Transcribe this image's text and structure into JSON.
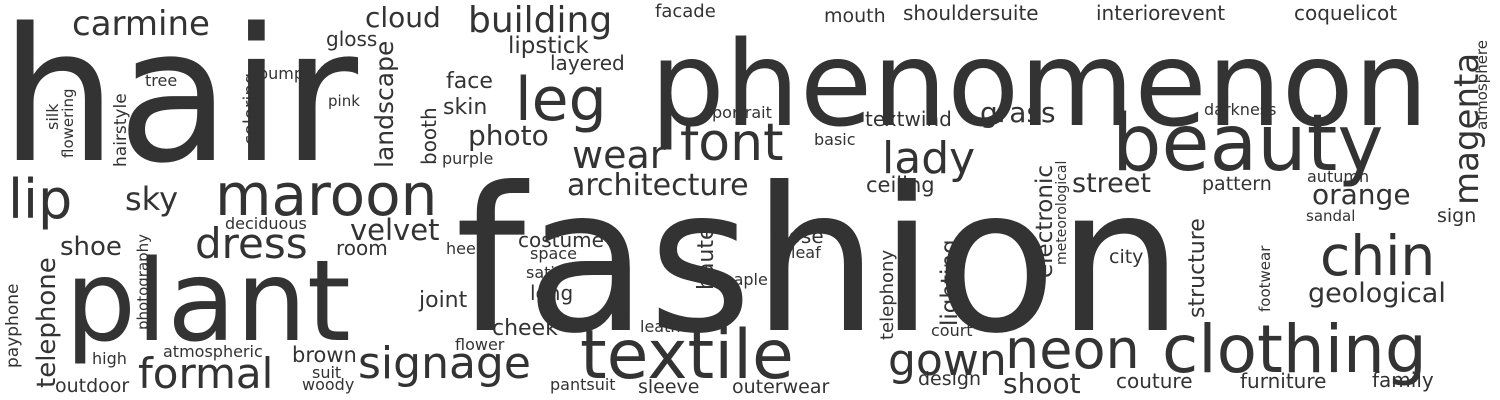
{
  "color": "#333333",
  "words": [
    {
      "text": "fashion",
      "weight": 100
    },
    {
      "text": "hair",
      "weight": 92
    },
    {
      "text": "phenomenon",
      "weight": 80
    },
    {
      "text": "plant",
      "weight": 70
    },
    {
      "text": "textile",
      "weight": 55
    },
    {
      "text": "clothing",
      "weight": 54
    },
    {
      "text": "beauty",
      "weight": 53
    },
    {
      "text": "maroon",
      "weight": 44
    },
    {
      "text": "leg",
      "weight": 44
    },
    {
      "text": "neon",
      "weight": 42
    },
    {
      "text": "chin",
      "weight": 38
    },
    {
      "text": "font",
      "weight": 37
    },
    {
      "text": "lip",
      "weight": 37
    },
    {
      "text": "lady",
      "weight": 34
    },
    {
      "text": "signage",
      "weight": 34
    },
    {
      "text": "formal",
      "weight": 34
    },
    {
      "text": "dress",
      "weight": 33
    },
    {
      "text": "gown",
      "weight": 33
    },
    {
      "text": "magenta",
      "weight": 31
    },
    {
      "text": "wear",
      "weight": 30
    },
    {
      "text": "carmine",
      "weight": 30
    },
    {
      "text": "building",
      "weight": 30
    },
    {
      "text": "architecture",
      "weight": 27
    },
    {
      "text": "telephone",
      "weight": 26
    },
    {
      "text": "geological",
      "weight": 25
    },
    {
      "text": "sky",
      "weight": 25
    },
    {
      "text": "photo",
      "weight": 25
    },
    {
      "text": "shoot",
      "weight": 25
    },
    {
      "text": "street",
      "weight": 24
    },
    {
      "text": "velvet",
      "weight": 24
    },
    {
      "text": "orange",
      "weight": 24
    },
    {
      "text": "grass",
      "weight": 24
    },
    {
      "text": "cloud",
      "weight": 24
    },
    {
      "text": "shoe",
      "weight": 23
    },
    {
      "text": "landscape",
      "weight": 22
    },
    {
      "text": "lipstick",
      "weight": 22
    },
    {
      "text": "lighting",
      "weight": 21
    },
    {
      "text": "electronic",
      "weight": 21
    },
    {
      "text": "structure",
      "weight": 21
    },
    {
      "text": "haute",
      "weight": 21
    },
    {
      "text": "brown",
      "weight": 21
    },
    {
      "text": "cheek",
      "weight": 21
    },
    {
      "text": "joint",
      "weight": 21
    },
    {
      "text": "skin",
      "weight": 21
    },
    {
      "text": "face",
      "weight": 21
    },
    {
      "text": "ceiling",
      "weight": 20
    },
    {
      "text": "textwind",
      "weight": 20
    },
    {
      "text": "costume",
      "weight": 20
    },
    {
      "text": "layered",
      "weight": 20
    },
    {
      "text": "long",
      "weight": 20
    },
    {
      "text": "booth",
      "weight": 20
    },
    {
      "text": "gloss",
      "weight": 20
    },
    {
      "text": "shouldersuite",
      "weight": 20
    },
    {
      "text": "interiorevent",
      "weight": 20
    },
    {
      "text": "coquelicot",
      "weight": 20
    },
    {
      "text": "room",
      "weight": 20
    },
    {
      "text": "nose",
      "weight": 20
    },
    {
      "text": "couture",
      "weight": 20
    },
    {
      "text": "furniture",
      "weight": 20
    },
    {
      "text": "family",
      "weight": 20
    },
    {
      "text": "design",
      "weight": 20
    },
    {
      "text": "outerwear",
      "weight": 20
    },
    {
      "text": "sleeve",
      "weight": 20
    },
    {
      "text": "outdoor",
      "weight": 20
    },
    {
      "text": "mouth",
      "weight": 19
    },
    {
      "text": "pattern",
      "weight": 19
    },
    {
      "text": "sign",
      "weight": 19
    },
    {
      "text": "city",
      "weight": 19
    },
    {
      "text": "telephony",
      "weight": 19
    },
    {
      "text": "facade",
      "weight": 18
    },
    {
      "text": "coloring",
      "weight": 18
    },
    {
      "text": "hairstyle",
      "weight": 18
    },
    {
      "text": "payphone",
      "weight": 18
    },
    {
      "text": "atmosphere",
      "weight": 17
    },
    {
      "text": "autumn",
      "weight": 16
    },
    {
      "text": "pump",
      "weight": 16
    },
    {
      "text": "deciduous",
      "weight": 16
    },
    {
      "text": "purple",
      "weight": 16
    },
    {
      "text": "portrait",
      "weight": 16
    },
    {
      "text": "basic",
      "weight": 16
    },
    {
      "text": "darkness",
      "weight": 16
    },
    {
      "text": "tree",
      "weight": 16
    },
    {
      "text": "pink",
      "weight": 15
    },
    {
      "text": "heels",
      "weight": 16
    },
    {
      "text": "space",
      "weight": 16
    },
    {
      "text": "satin",
      "weight": 16
    },
    {
      "text": "leaf",
      "weight": 16
    },
    {
      "text": "maple",
      "weight": 16
    },
    {
      "text": "leather",
      "weight": 16
    },
    {
      "text": "court",
      "weight": 16
    },
    {
      "text": "flower",
      "weight": 16
    },
    {
      "text": "atmospheric",
      "weight": 16
    },
    {
      "text": "high",
      "weight": 16
    },
    {
      "text": "suit",
      "weight": 16
    },
    {
      "text": "woody",
      "weight": 16
    },
    {
      "text": "pantsuit",
      "weight": 16
    },
    {
      "text": "sandal",
      "weight": 16
    },
    {
      "text": "footwear",
      "weight": 16
    },
    {
      "text": "meteorological",
      "weight": 16
    },
    {
      "text": "photography",
      "weight": 16
    },
    {
      "text": "silk",
      "weight": 16
    },
    {
      "text": "flowering",
      "weight": 16
    }
  ]
}
